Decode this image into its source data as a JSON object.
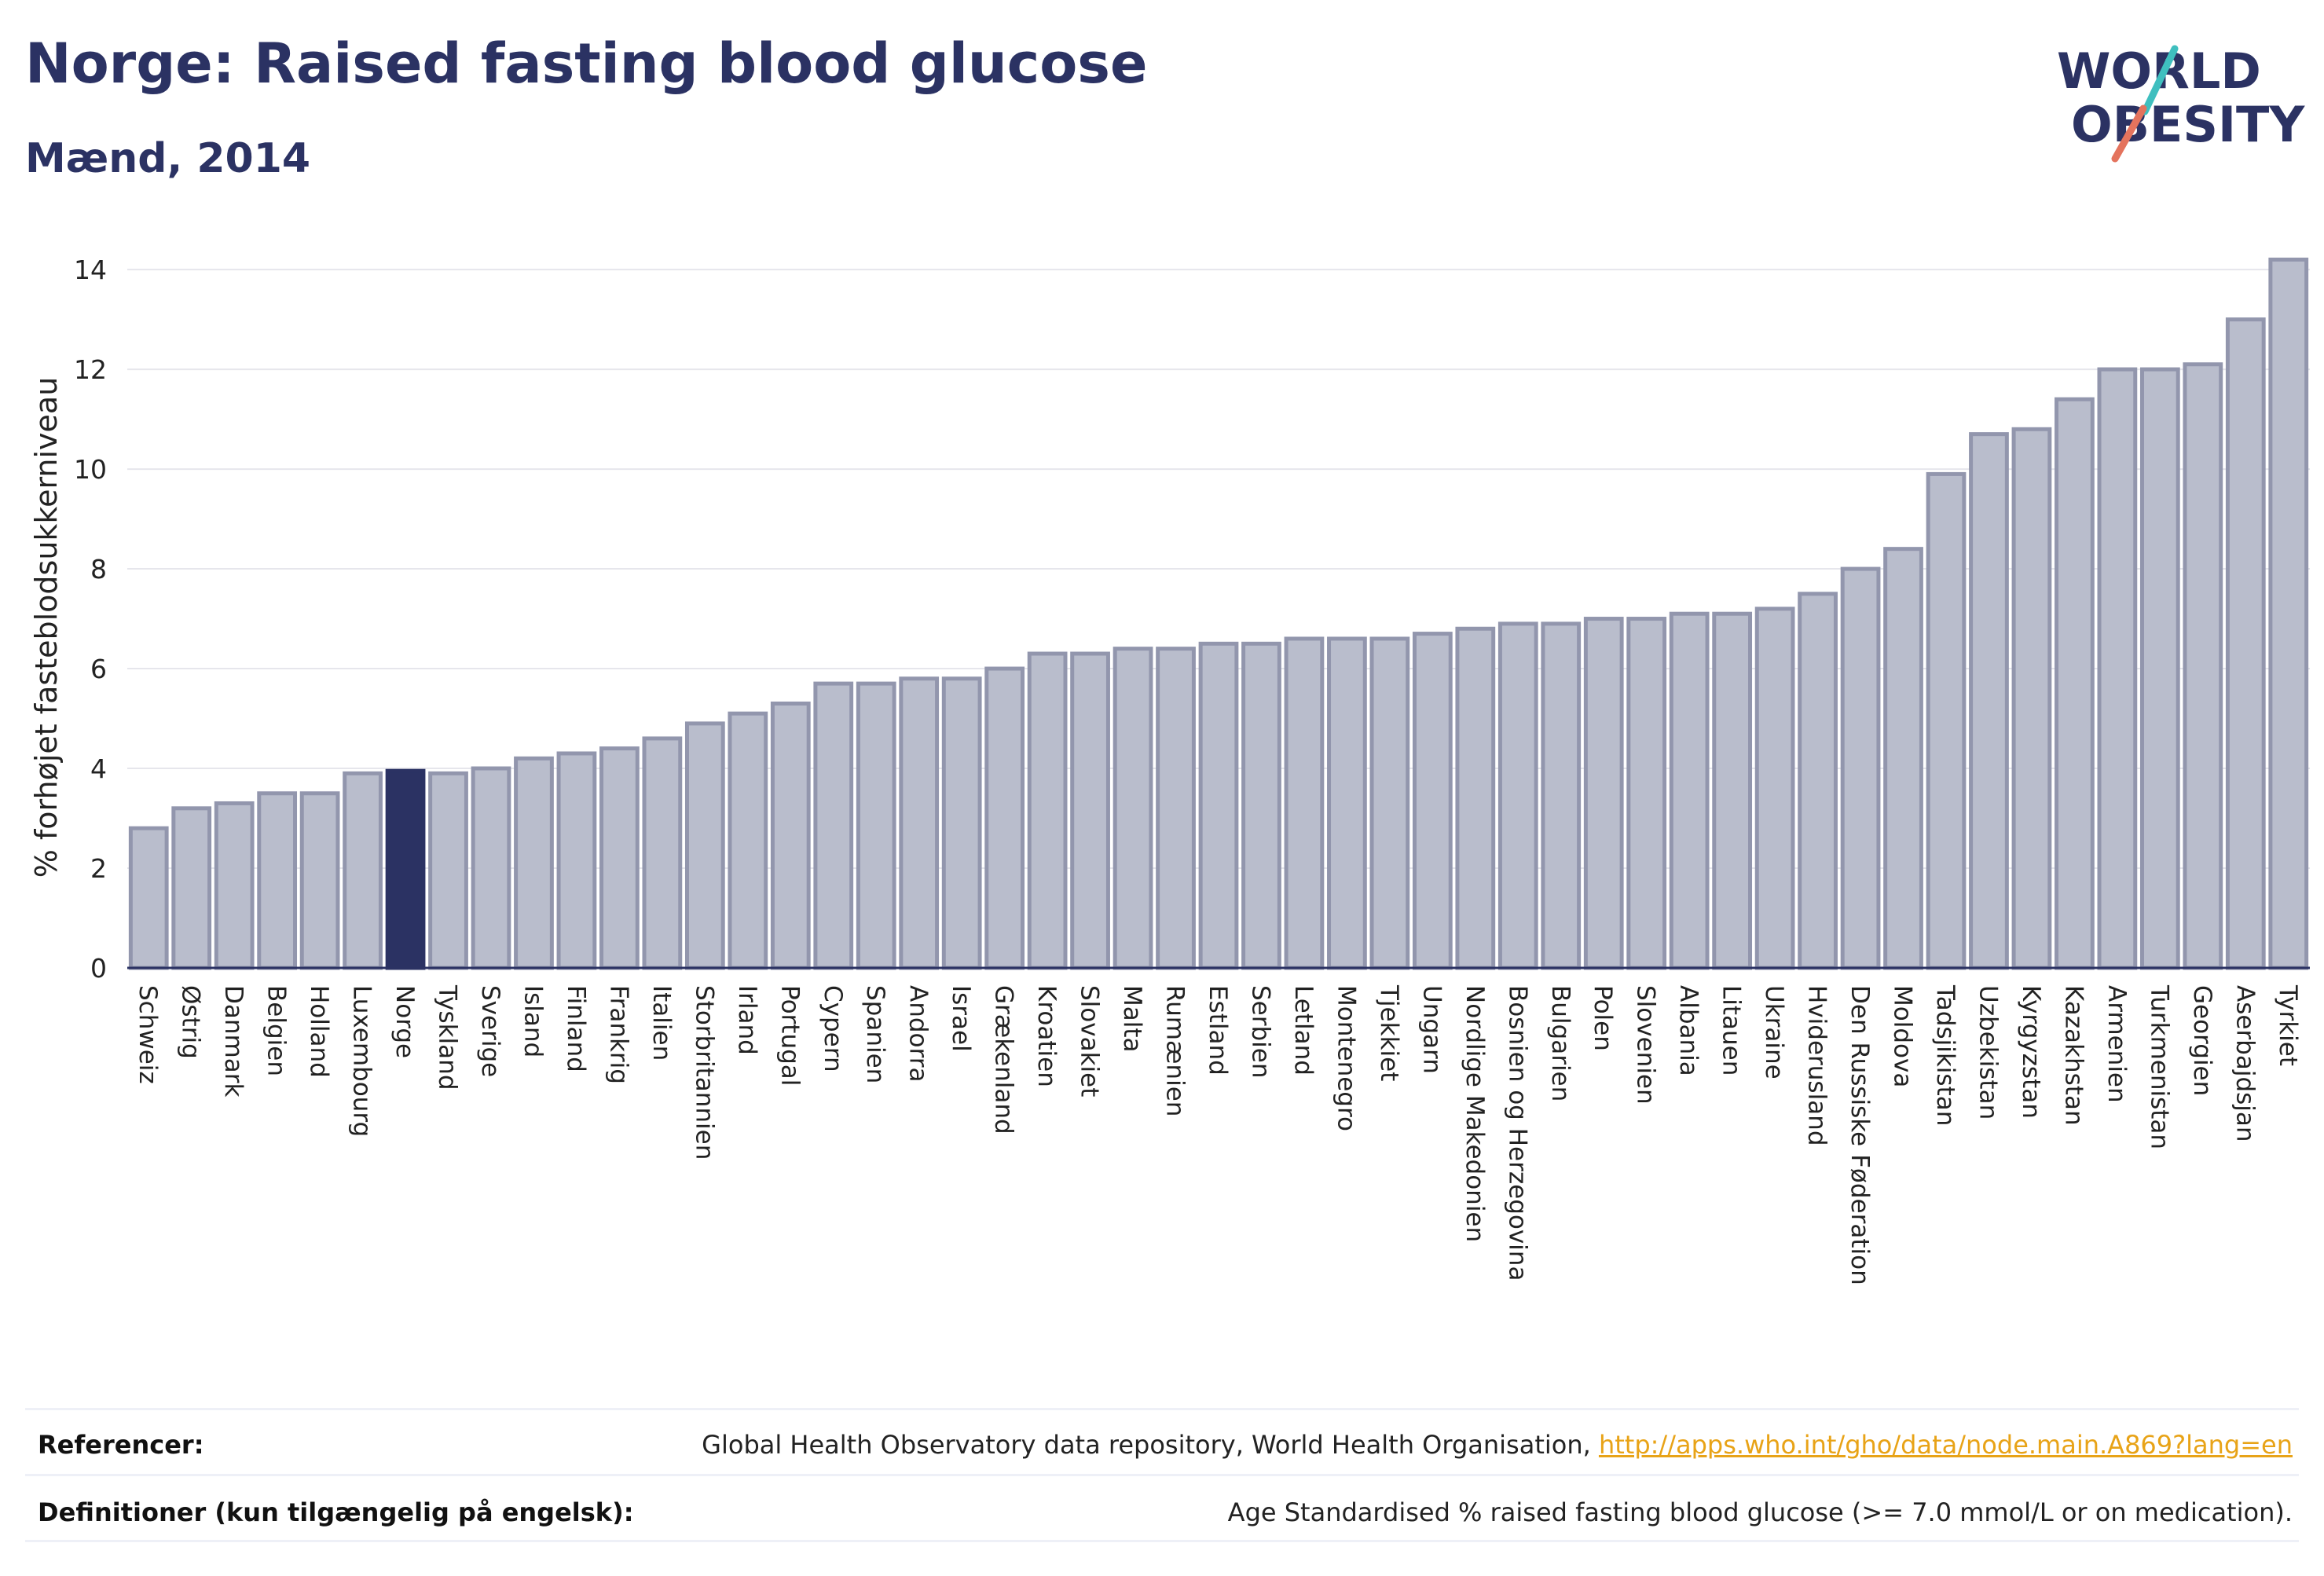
{
  "header": {
    "title": "Norge: Raised fasting blood glucose",
    "subtitle": "Mænd, 2014"
  },
  "logo": {
    "line1": "WORLD",
    "line2": "OBESITY"
  },
  "colors": {
    "bar": "#b9bdcc",
    "bar_border": "#9296ad",
    "highlight": "#2b3263",
    "grid": "#e6e6ec",
    "axis": "#2b3263",
    "logo_teal": "#3fbfbf",
    "logo_red": "#e4735d",
    "link": "#e8a317"
  },
  "chart_data": {
    "type": "bar",
    "ylabel": "% forhøjet fasteblodsukkerniveau",
    "ylim": [
      0,
      14.6
    ],
    "yticks": [
      0,
      2,
      4,
      6,
      8,
      10,
      12,
      14
    ],
    "grid": true,
    "highlight": "Norge",
    "categories": [
      "Schweiz",
      "Østrig",
      "Danmark",
      "Belgien",
      "Holland",
      "Luxembourg",
      "Norge",
      "Tyskland",
      "Sverige",
      "Island",
      "Finland",
      "Frankrig",
      "Italien",
      "Storbritannien",
      "Irland",
      "Portugal",
      "Cypern",
      "Spanien",
      "Andorra",
      "Israel",
      "Grækenland",
      "Kroatien",
      "Slovakiet",
      "Malta",
      "Rumænien",
      "Estland",
      "Serbien",
      "Letland",
      "Montenegro",
      "Tjekkiet",
      "Ungarn",
      "Nordlige Makedonien",
      "Bosnien og Herzegovina",
      "Bulgarien",
      "Polen",
      "Slovenien",
      "Albania",
      "Litauen",
      "Ukraine",
      "Hviderusland",
      "Den Russiske Føderation",
      "Moldova",
      "Tadsjikistan",
      "Uzbekistan",
      "Kyrgyzstan",
      "Kazakhstan",
      "Armenien",
      "Turkmenistan",
      "Georgien",
      "Aserbajdsjan",
      "Tyrkiet"
    ],
    "values": [
      2.8,
      3.2,
      3.3,
      3.5,
      3.5,
      3.9,
      3.95,
      3.9,
      4.0,
      4.2,
      4.3,
      4.4,
      4.6,
      4.9,
      5.1,
      5.3,
      5.7,
      5.7,
      5.8,
      5.8,
      6.0,
      6.3,
      6.3,
      6.4,
      6.4,
      6.5,
      6.5,
      6.6,
      6.6,
      6.6,
      6.7,
      6.8,
      6.9,
      6.9,
      7.0,
      7.0,
      7.1,
      7.1,
      7.2,
      7.5,
      8.0,
      8.4,
      9.9,
      10.7,
      10.8,
      11.4,
      12.0,
      12.0,
      12.1,
      13.0,
      14.2
    ]
  },
  "footer": {
    "references_label": "Referencer:",
    "references_text": "Global Health Observatory data repository, World Health Organisation, ",
    "references_link": "http://apps.who.int/gho/data/node.main.A869?lang=en",
    "definitions_label": "Definitioner (kun tilgængelig på engelsk):",
    "definitions_text": "Age Standardised % raised fasting blood glucose (>= 7.0 mmol/L or on medication)."
  }
}
